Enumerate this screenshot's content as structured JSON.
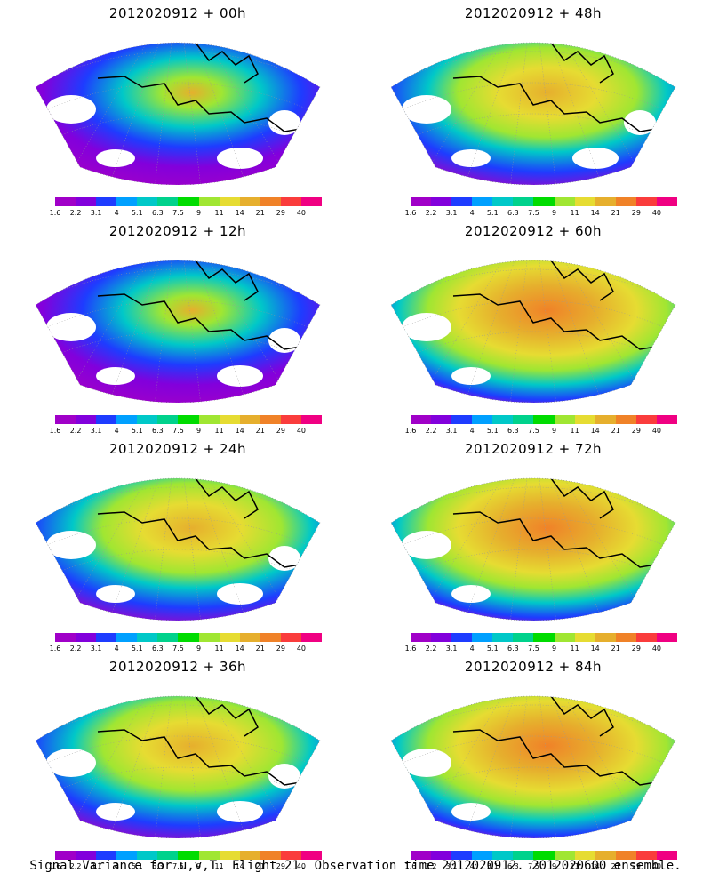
{
  "panels": [
    {
      "title": "2012020912 + 00h"
    },
    {
      "title": "2012020912 + 48h"
    },
    {
      "title": "2012020912 + 12h"
    },
    {
      "title": "2012020912 + 60h"
    },
    {
      "title": "2012020912 + 24h"
    },
    {
      "title": "2012020912 + 72h"
    },
    {
      "title": "2012020912 + 36h"
    },
    {
      "title": "2012020912 + 84h"
    }
  ],
  "colorbar": {
    "labels": [
      "1.6",
      "2.2",
      "3.1",
      "4",
      "5.1",
      "6.3",
      "7.5",
      "9",
      "11",
      "14",
      "21",
      "29",
      "40"
    ],
    "colors": [
      "#a000c8",
      "#8200dc",
      "#1e3cff",
      "#00a0ff",
      "#00c8c8",
      "#00d28c",
      "#00dc00",
      "#a0e632",
      "#e6dc32",
      "#e6af2d",
      "#f08228",
      "#fa3c3c",
      "#f00082"
    ]
  },
  "caption": "Signal Variance for u,v,T. Flight 21. Observation time 2012020912. 2012020600 ensemble."
}
